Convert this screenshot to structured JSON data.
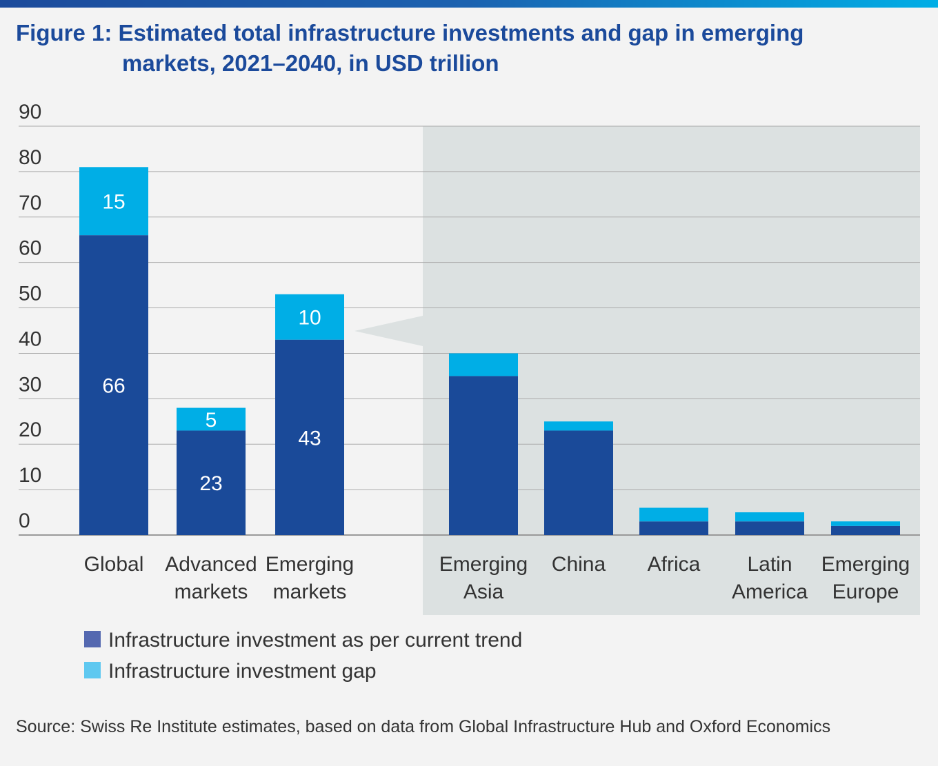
{
  "title": {
    "line1": "Figure 1: Estimated total infrastructure investments and gap in emerging",
    "line2": "markets, 2021–2040, in USD trillion"
  },
  "colors": {
    "trend": "#1a4a99",
    "gap": "#00aee6",
    "highlight_panel": "#dce1e1",
    "title": "#1b4a9b"
  },
  "chart_data": {
    "type": "bar",
    "stacked": true,
    "categories": [
      [
        "Global"
      ],
      [
        "Advanced",
        "markets"
      ],
      [
        "Emerging",
        "markets"
      ],
      [
        "Emerging",
        "Asia"
      ],
      [
        "China"
      ],
      [
        "Africa"
      ],
      [
        "Latin",
        "America"
      ],
      [
        "Emerging",
        "Europe"
      ]
    ],
    "series": [
      {
        "name": "Infrastructure investment as per current trend",
        "values": [
          66,
          23,
          43,
          35,
          23,
          3,
          3,
          2
        ],
        "labels": [
          "66",
          "23",
          "43",
          "",
          "",
          "",
          "",
          ""
        ]
      },
      {
        "name": "Infrastructure investment gap",
        "values": [
          15,
          5,
          10,
          5,
          2,
          3,
          2,
          1
        ],
        "labels": [
          "15",
          "5",
          "10",
          "",
          "",
          "",
          "",
          ""
        ]
      }
    ],
    "ylim": [
      0,
      90
    ],
    "yticks": [
      "0",
      "10",
      "20",
      "30",
      "40",
      "50",
      "60",
      "70",
      "80",
      "90"
    ],
    "grid": true,
    "highlighted_group": "Emerging markets breakdown (last 5 categories)",
    "legend_placement": "bottom-left"
  },
  "source": "Source: Swiss Re Institute estimates, based on data from Global Infrastructure Hub and Oxford Economics"
}
